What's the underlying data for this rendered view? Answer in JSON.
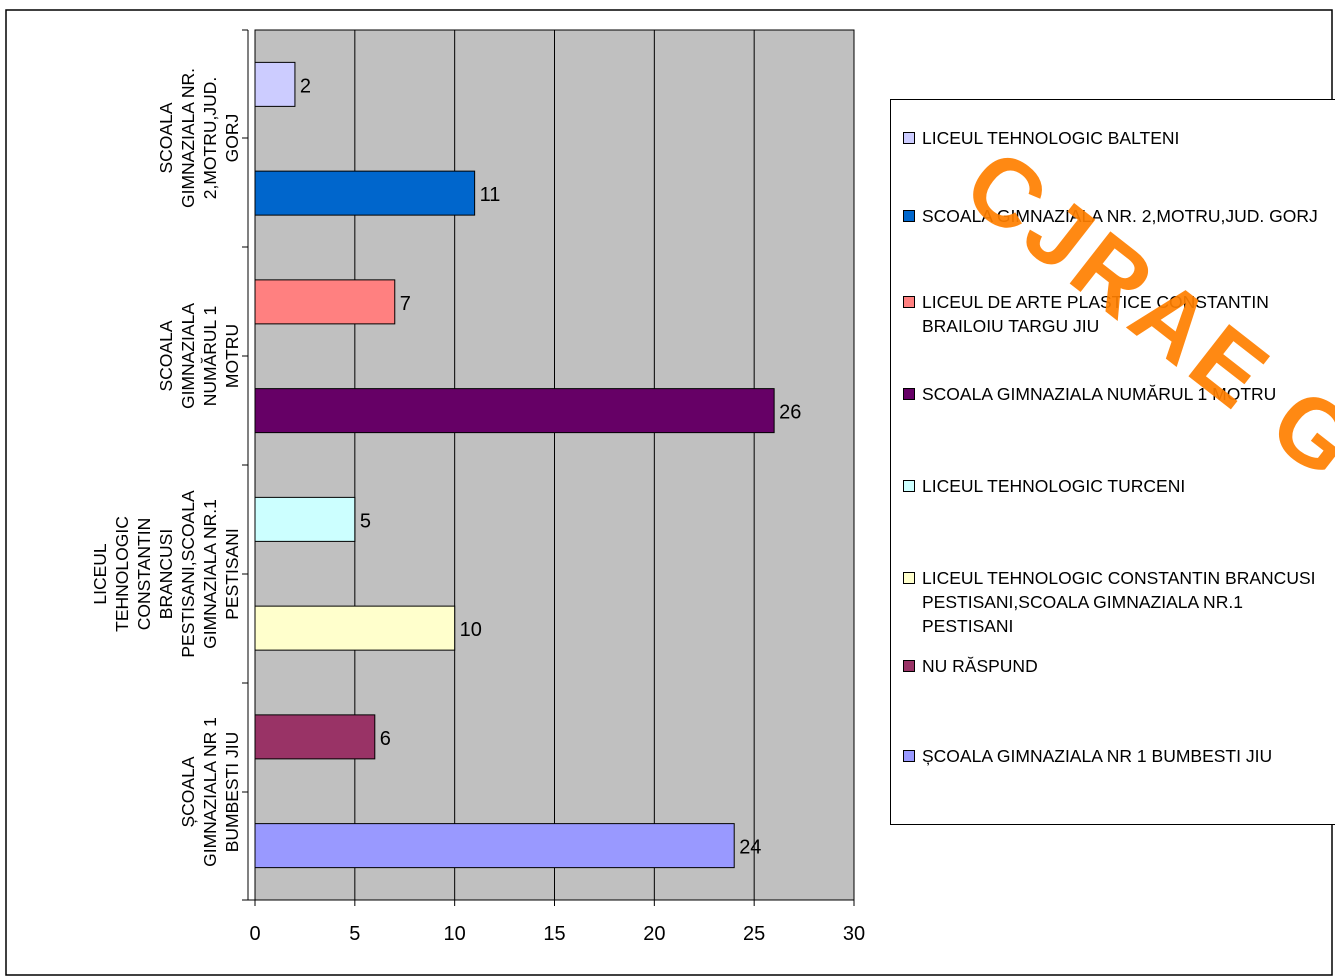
{
  "chart_data": {
    "type": "bar",
    "orientation": "horizontal",
    "categories": [
      "LICEUL TEHNOLOGIC BALTENI",
      "SCOALA GIMNAZIALA NR. 2,MOTRU,JUD. GORJ",
      "LICEUL DE ARTE PLASTICE CONSTANTIN BRAILOIU TARGU JIU",
      "SCOALA  GIMNAZIALA  NUMĂRUL 1 MOTRU",
      "LICEUL TEHNOLOGIC TURCENI",
      "LICEUL TEHNOLOGIC CONSTANTIN BRANCUSI PESTISANI,SCOALA GIMNAZIALA NR.1 PESTISANI",
      "NU RĂSPUND",
      "ȘCOALA GIMNAZIALA NR 1 BUMBESTI JIU"
    ],
    "values": [
      2,
      11,
      7,
      26,
      5,
      10,
      6,
      24
    ],
    "colors": [
      "#ccccff",
      "#0066cc",
      "#ff8080",
      "#660066",
      "#ccffff",
      "#ffffcc",
      "#993366",
      "#9999ff"
    ],
    "xlim": [
      0,
      30
    ],
    "xticks": [
      "0",
      "5",
      "10",
      "15",
      "20",
      "25",
      "30"
    ],
    "grid": true,
    "plot_background": "#c0c0c0",
    "legend_position": "right",
    "legend": [
      "LICEUL TEHNOLOGIC BALTENI",
      "SCOALA GIMNAZIALA NR. 2,MOTRU,JUD. GORJ",
      "LICEUL DE ARTE PLASTICE CONSTANTIN BRAILOIU TARGU JIU",
      "SCOALA  GIMNAZIALA  NUMĂRUL 1 MOTRU",
      "LICEUL TEHNOLOGIC TURCENI",
      "LICEUL TEHNOLOGIC CONSTANTIN BRANCUSI PESTISANI,SCOALA GIMNAZIALA NR.1 PESTISANI",
      "NU RĂSPUND",
      "ȘCOALA GIMNAZIALA NR 1 BUMBESTI JIU"
    ],
    "ytick_labels": [
      {
        "category": "SCOALA GIMNAZIALA NR. 2,MOTRU,JUD. GORJ",
        "lines": [
          "SCOALA",
          "GIMNAZIALA NR.",
          "2,MOTRU,JUD.",
          "GORJ"
        ]
      },
      {
        "category": "SCOALA  GIMNAZIALA  NUMĂRUL 1 MOTRU",
        "lines": [
          "SCOALA",
          "GIMNAZIALA",
          "NUMĂRUL 1",
          "MOTRU"
        ]
      },
      {
        "category": "LICEUL TEHNOLOGIC CONSTANTIN BRANCUSI PESTISANI,SCOALA GIMNAZIALA NR.1 PESTISANI",
        "lines": [
          "LICEUL",
          "TEHNOLOGIC",
          "CONSTANTIN",
          "BRANCUSI",
          "PESTISANI,SCOALA",
          "GIMNAZIALA NR.1",
          "PESTISANI"
        ]
      },
      {
        "category": "ȘCOALA GIMNAZIALA NR 1 BUMBESTI JIU",
        "lines": [
          "ȘCOALA",
          "GIMNAZIALA NR 1",
          "BUMBESTI JIU"
        ]
      }
    ]
  },
  "watermark": {
    "text": "CJRAE Gorj",
    "color": "#ff7f00"
  }
}
